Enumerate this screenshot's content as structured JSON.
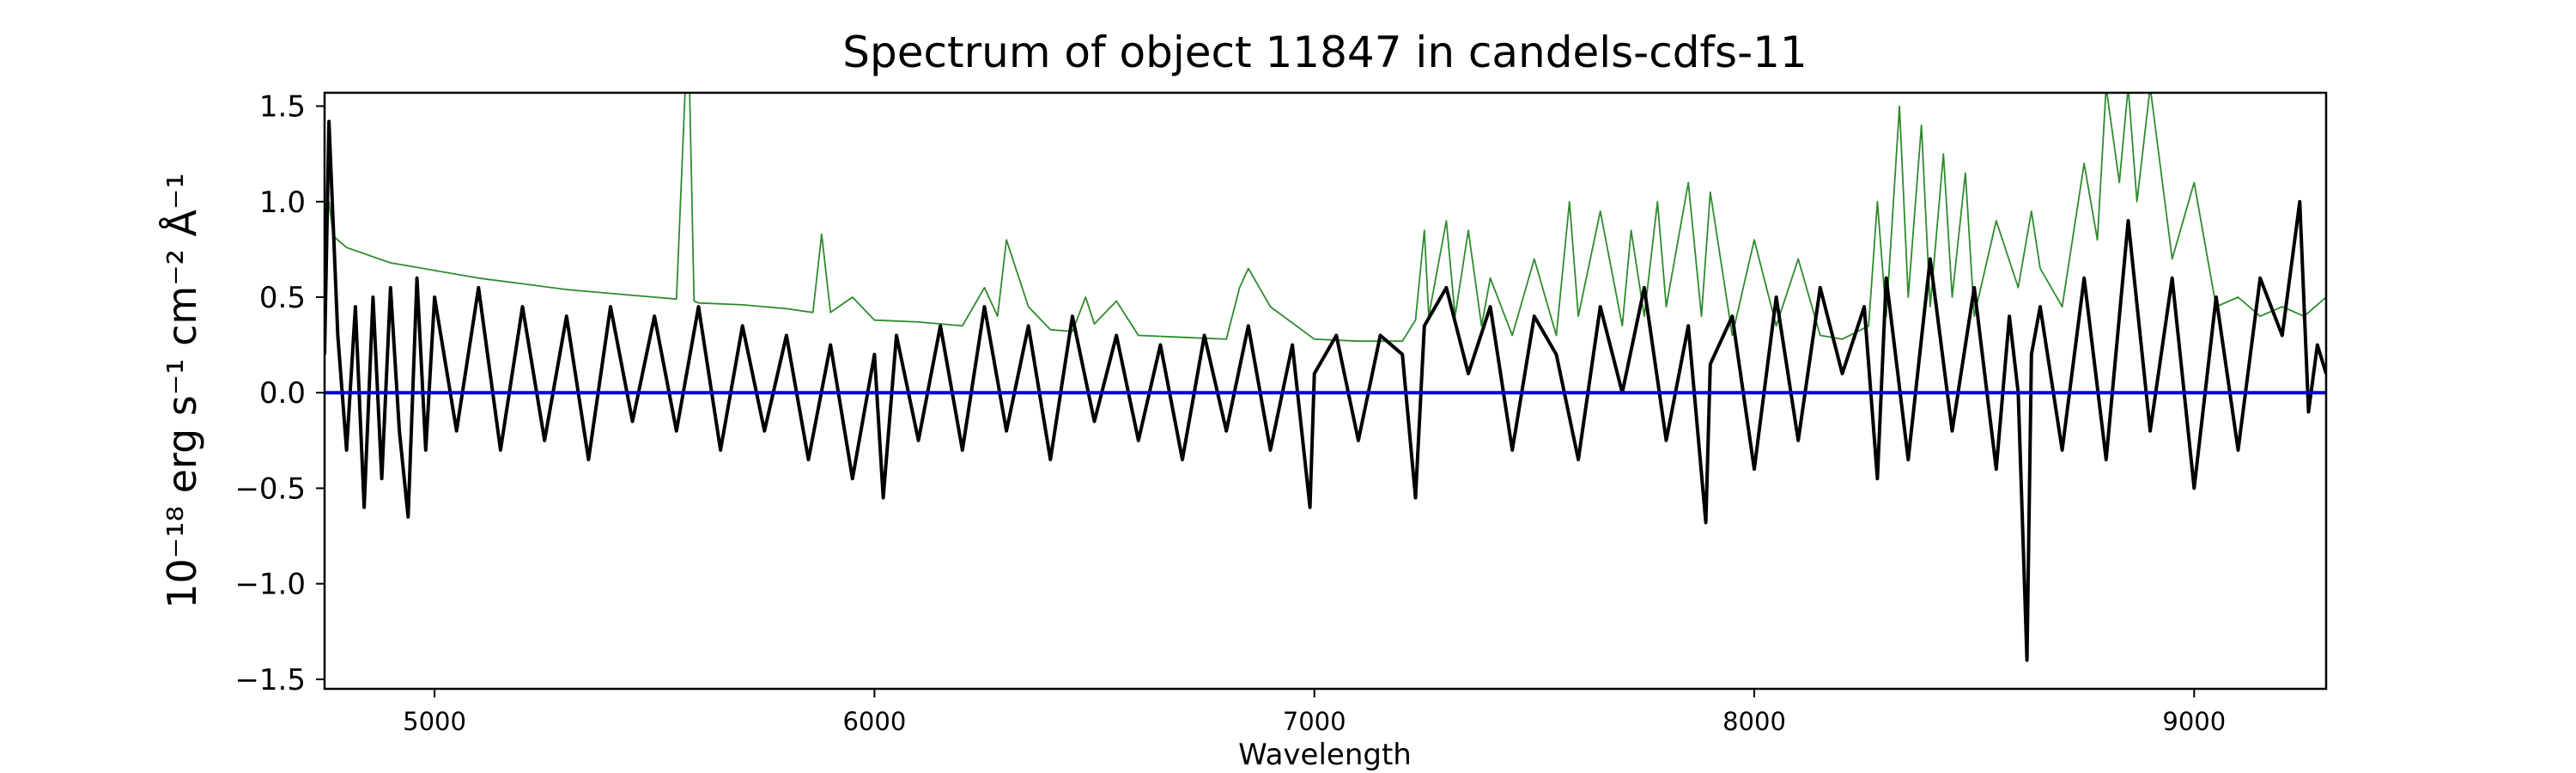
{
  "chart_data": {
    "type": "line",
    "title": "Spectrum of object 11847 in candels-cdfs-11",
    "xlabel": "Wavelength",
    "ylabel": "10⁻¹⁸ erg s⁻¹ cm⁻² Å⁻¹",
    "xlim": [
      4750,
      9300
    ],
    "ylim": [
      -1.55,
      1.57
    ],
    "x_ticks": [
      5000,
      6000,
      7000,
      8000,
      9000
    ],
    "y_ticks": [
      -1.5,
      -1.0,
      -0.5,
      0.0,
      0.5,
      1.0,
      1.5
    ],
    "x_tick_labels": [
      "5000",
      "6000",
      "7000",
      "8000",
      "9000"
    ],
    "y_tick_labels": [
      "−1.5",
      "−1.0",
      "−0.5",
      "0.0",
      "0.5",
      "1.0",
      "1.5"
    ],
    "grid": false,
    "legend": "none",
    "series": [
      {
        "role": "flux",
        "color": "#000000",
        "x": [
          4750,
          4760,
          4780,
          4800,
          4820,
          4840,
          4860,
          4880,
          4900,
          4920,
          4940,
          4960,
          4980,
          5000,
          5050,
          5100,
          5150,
          5200,
          5250,
          5300,
          5350,
          5400,
          5450,
          5500,
          5550,
          5600,
          5650,
          5700,
          5750,
          5800,
          5850,
          5900,
          5950,
          6000,
          6020,
          6050,
          6100,
          6150,
          6200,
          6250,
          6300,
          6350,
          6400,
          6450,
          6500,
          6550,
          6600,
          6650,
          6700,
          6750,
          6800,
          6850,
          6900,
          6950,
          6990,
          7000,
          7050,
          7100,
          7150,
          7200,
          7230,
          7250,
          7300,
          7350,
          7400,
          7450,
          7500,
          7550,
          7600,
          7650,
          7700,
          7750,
          7800,
          7850,
          7890,
          7900,
          7950,
          8000,
          8050,
          8100,
          8150,
          8200,
          8250,
          8280,
          8300,
          8350,
          8400,
          8450,
          8500,
          8550,
          8580,
          8600,
          8620,
          8630,
          8650,
          8700,
          8750,
          8800,
          8850,
          8900,
          8950,
          9000,
          9050,
          9100,
          9150,
          9200,
          9240,
          9260,
          9280,
          9300
        ],
        "y": [
          0.2,
          1.42,
          0.3,
          -0.3,
          0.45,
          -0.6,
          0.5,
          -0.45,
          0.55,
          -0.2,
          -0.65,
          0.6,
          -0.3,
          0.5,
          -0.2,
          0.55,
          -0.3,
          0.45,
          -0.25,
          0.4,
          -0.35,
          0.45,
          -0.15,
          0.4,
          -0.2,
          0.45,
          -0.3,
          0.35,
          -0.2,
          0.3,
          -0.35,
          0.25,
          -0.45,
          0.2,
          -0.55,
          0.3,
          -0.25,
          0.35,
          -0.3,
          0.45,
          -0.2,
          0.35,
          -0.35,
          0.4,
          -0.15,
          0.3,
          -0.25,
          0.25,
          -0.35,
          0.3,
          -0.2,
          0.35,
          -0.3,
          0.25,
          -0.6,
          0.1,
          0.3,
          -0.25,
          0.3,
          0.2,
          -0.55,
          0.35,
          0.55,
          0.1,
          0.45,
          -0.3,
          0.4,
          0.2,
          -0.35,
          0.45,
          0.0,
          0.55,
          -0.25,
          0.35,
          -0.68,
          0.15,
          0.4,
          -0.4,
          0.5,
          -0.25,
          0.55,
          0.1,
          0.45,
          -0.45,
          0.6,
          -0.35,
          0.7,
          -0.2,
          0.55,
          -0.4,
          0.4,
          0.0,
          -1.4,
          0.2,
          0.45,
          -0.3,
          0.6,
          -0.35,
          0.9,
          -0.2,
          0.6,
          -0.5,
          0.5,
          -0.3,
          0.6,
          0.3,
          1.0,
          -0.1,
          0.25,
          0.1
        ]
      },
      {
        "role": "error",
        "color": "#2e8b2e",
        "x": [
          4750,
          4760,
          4770,
          4800,
          4850,
          4900,
          4950,
          5000,
          5100,
          5200,
          5300,
          5400,
          5500,
          5550,
          5570,
          5580,
          5590,
          5600,
          5700,
          5800,
          5860,
          5880,
          5900,
          5950,
          6000,
          6100,
          6200,
          6250,
          6280,
          6300,
          6350,
          6400,
          6450,
          6480,
          6500,
          6550,
          6600,
          6700,
          6800,
          6830,
          6850,
          6900,
          7000,
          7100,
          7200,
          7230,
          7250,
          7260,
          7300,
          7320,
          7350,
          7380,
          7400,
          7450,
          7500,
          7550,
          7580,
          7600,
          7650,
          7700,
          7720,
          7750,
          7780,
          7800,
          7850,
          7880,
          7900,
          7950,
          8000,
          8050,
          8100,
          8150,
          8200,
          8260,
          8280,
          8300,
          8330,
          8350,
          8380,
          8400,
          8430,
          8450,
          8480,
          8500,
          8550,
          8600,
          8630,
          8650,
          8700,
          8750,
          8780,
          8800,
          8830,
          8850,
          8870,
          8900,
          8950,
          9000,
          9050,
          9100,
          9150,
          9200,
          9250,
          9300
        ],
        "y": [
          0.85,
          1.0,
          0.82,
          0.76,
          0.72,
          0.68,
          0.66,
          0.64,
          0.6,
          0.57,
          0.54,
          0.52,
          0.5,
          0.49,
          1.6,
          1.57,
          0.48,
          0.47,
          0.46,
          0.44,
          0.42,
          0.83,
          0.42,
          0.5,
          0.38,
          0.37,
          0.35,
          0.55,
          0.4,
          0.8,
          0.45,
          0.33,
          0.32,
          0.5,
          0.36,
          0.48,
          0.3,
          0.29,
          0.28,
          0.55,
          0.65,
          0.45,
          0.28,
          0.27,
          0.27,
          0.38,
          0.85,
          0.4,
          0.9,
          0.4,
          0.85,
          0.35,
          0.6,
          0.3,
          0.7,
          0.3,
          1.0,
          0.4,
          0.95,
          0.35,
          0.85,
          0.4,
          1.0,
          0.45,
          1.1,
          0.4,
          1.05,
          0.3,
          0.8,
          0.35,
          0.7,
          0.3,
          0.28,
          0.35,
          1.0,
          0.4,
          1.5,
          0.5,
          1.4,
          0.45,
          1.25,
          0.5,
          1.15,
          0.4,
          0.9,
          0.55,
          0.95,
          0.65,
          0.45,
          1.2,
          0.8,
          1.6,
          1.1,
          1.6,
          1.0,
          1.6,
          0.7,
          1.1,
          0.45,
          0.5,
          0.4,
          0.45,
          0.4,
          0.5
        ]
      },
      {
        "role": "zero",
        "color": "#0000cd",
        "x": [
          4750,
          9300
        ],
        "y": [
          0,
          0
        ]
      }
    ]
  }
}
